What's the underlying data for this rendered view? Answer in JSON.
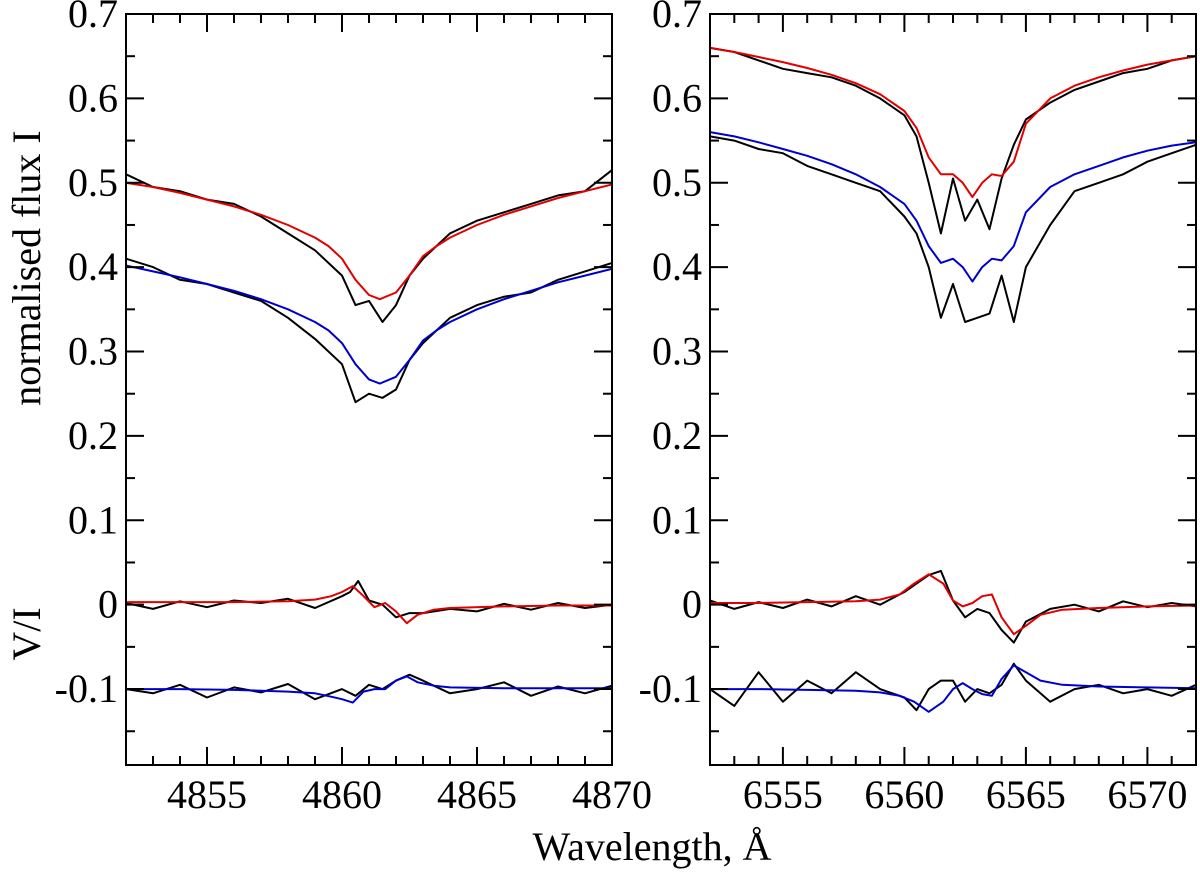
{
  "figure": {
    "ylabel_top": "normalised flux I",
    "ylabel_bottom": "V/I",
    "xlabel": "Wavelength,  Å"
  },
  "colors": {
    "observed": "#000000",
    "model_red": "#e00000",
    "model_blue": "#0000cc"
  },
  "chart_data": [
    {
      "type": "line",
      "panel": "left",
      "xlim": [
        4852,
        4870
      ],
      "ylim": [
        -0.19,
        0.7
      ],
      "x_ticks": [
        4855,
        4860,
        4865,
        4870
      ],
      "x_tick_labels": [
        "4855",
        "4860",
        "4865",
        "4870"
      ],
      "y_ticks": [
        -0.1,
        0,
        0.1,
        0.2,
        0.3,
        0.4,
        0.5,
        0.6,
        0.7
      ],
      "y_tick_labels": [
        "-0.1",
        "0",
        "0.1",
        "0.2",
        "0.3",
        "0.4",
        "0.5",
        "0.6",
        "0.7"
      ],
      "grid": false,
      "series": [
        {
          "role": "observed",
          "color": "#000000",
          "x": [
            4852,
            4853,
            4854,
            4855,
            4856,
            4857,
            4858,
            4859,
            4860,
            4860.5,
            4861,
            4861.5,
            4862,
            4862.5,
            4863,
            4864,
            4865,
            4866,
            4867,
            4868,
            4869,
            4870
          ],
          "y": [
            0.51,
            0.495,
            0.49,
            0.48,
            0.475,
            0.46,
            0.44,
            0.42,
            0.39,
            0.355,
            0.36,
            0.335,
            0.355,
            0.39,
            0.41,
            0.44,
            0.455,
            0.465,
            0.475,
            0.485,
            0.49,
            0.515
          ]
        },
        {
          "role": "model",
          "color": "#e00000",
          "x": [
            4852,
            4853,
            4854,
            4855,
            4856,
            4857,
            4858,
            4859,
            4859.5,
            4860,
            4860.5,
            4861,
            4861.4,
            4862,
            4862.5,
            4863,
            4863.5,
            4864,
            4865,
            4866,
            4867,
            4868,
            4869,
            4870
          ],
          "y": [
            0.5,
            0.495,
            0.488,
            0.48,
            0.472,
            0.462,
            0.45,
            0.435,
            0.425,
            0.41,
            0.385,
            0.367,
            0.362,
            0.37,
            0.39,
            0.413,
            0.425,
            0.435,
            0.45,
            0.462,
            0.472,
            0.482,
            0.49,
            0.498
          ]
        },
        {
          "role": "observed",
          "color": "#000000",
          "x": [
            4852,
            4853,
            4854,
            4855,
            4856,
            4857,
            4858,
            4859,
            4860,
            4860.5,
            4861,
            4861.5,
            4862,
            4862.5,
            4863,
            4864,
            4865,
            4866,
            4867,
            4868,
            4869,
            4870
          ],
          "y": [
            0.41,
            0.4,
            0.385,
            0.38,
            0.37,
            0.36,
            0.34,
            0.315,
            0.285,
            0.24,
            0.25,
            0.245,
            0.255,
            0.29,
            0.31,
            0.34,
            0.355,
            0.365,
            0.37,
            0.385,
            0.395,
            0.405
          ]
        },
        {
          "role": "model",
          "color": "#0000cc",
          "x": [
            4852,
            4853,
            4854,
            4855,
            4856,
            4857,
            4858,
            4859,
            4859.5,
            4860,
            4860.5,
            4861,
            4861.4,
            4862,
            4862.5,
            4863,
            4863.5,
            4864,
            4865,
            4866,
            4867,
            4868,
            4869,
            4870
          ],
          "y": [
            0.402,
            0.395,
            0.388,
            0.38,
            0.372,
            0.362,
            0.35,
            0.335,
            0.325,
            0.31,
            0.285,
            0.267,
            0.262,
            0.27,
            0.29,
            0.313,
            0.325,
            0.335,
            0.35,
            0.362,
            0.372,
            0.382,
            0.39,
            0.398
          ]
        },
        {
          "role": "observed",
          "color": "#000000",
          "x": [
            4852,
            4853,
            4854,
            4855,
            4856,
            4857,
            4858,
            4859,
            4860,
            4860.3,
            4860.6,
            4861,
            4861.5,
            4862,
            4862.5,
            4863,
            4864,
            4865,
            4866,
            4867,
            4868,
            4869,
            4870
          ],
          "y": [
            0.002,
            -0.005,
            0.004,
            -0.003,
            0.005,
            0.002,
            0.007,
            -0.004,
            0.01,
            0.015,
            0.028,
            0.005,
            0.0,
            -0.015,
            -0.01,
            -0.01,
            -0.005,
            -0.008,
            0.001,
            -0.006,
            0.002,
            -0.004,
            0.0
          ]
        },
        {
          "role": "model",
          "color": "#e00000",
          "x": [
            4852,
            4854,
            4856,
            4858,
            4859,
            4859.6,
            4860,
            4860.4,
            4860.8,
            4861.2,
            4861.6,
            4862,
            4862.4,
            4862.8,
            4863.4,
            4864,
            4866,
            4868,
            4870
          ],
          "y": [
            0.003,
            0.003,
            0.003,
            0.004,
            0.006,
            0.01,
            0.015,
            0.022,
            0.01,
            -0.003,
            0.002,
            -0.008,
            -0.022,
            -0.012,
            -0.006,
            -0.004,
            -0.002,
            -0.001,
            -0.001
          ]
        },
        {
          "role": "observed",
          "color": "#000000",
          "x": [
            4852,
            4853,
            4854,
            4855,
            4856,
            4857,
            4858,
            4859,
            4860,
            4860.5,
            4861,
            4861.5,
            4862,
            4862.5,
            4863,
            4864,
            4865,
            4866,
            4867,
            4868,
            4869,
            4870
          ],
          "y": [
            -0.1,
            -0.105,
            -0.095,
            -0.11,
            -0.098,
            -0.104,
            -0.094,
            -0.112,
            -0.1,
            -0.108,
            -0.095,
            -0.1,
            -0.09,
            -0.083,
            -0.09,
            -0.105,
            -0.1,
            -0.092,
            -0.108,
            -0.097,
            -0.105,
            -0.096
          ]
        },
        {
          "role": "model",
          "color": "#0000cc",
          "x": [
            4852,
            4854,
            4856,
            4858,
            4859,
            4859.6,
            4860,
            4860.4,
            4860.8,
            4861.2,
            4861.6,
            4862,
            4862.4,
            4862.8,
            4863.4,
            4864,
            4866,
            4868,
            4870
          ],
          "y": [
            -0.1,
            -0.1,
            -0.101,
            -0.103,
            -0.105,
            -0.109,
            -0.112,
            -0.116,
            -0.103,
            -0.1,
            -0.1,
            -0.09,
            -0.085,
            -0.092,
            -0.096,
            -0.098,
            -0.099,
            -0.099,
            -0.099
          ]
        }
      ]
    },
    {
      "type": "line",
      "panel": "right",
      "xlim": [
        6552,
        6572
      ],
      "ylim": [
        -0.19,
        0.7
      ],
      "x_ticks": [
        6555,
        6560,
        6565,
        6570
      ],
      "x_tick_labels": [
        "6555",
        "6560",
        "6565",
        "6570"
      ],
      "y_ticks": [
        -0.1,
        0,
        0.1,
        0.2,
        0.3,
        0.4,
        0.5,
        0.6,
        0.7
      ],
      "y_tick_labels": [
        "-0.1",
        "0",
        "0.1",
        "0.2",
        "0.3",
        "0.4",
        "0.5",
        "0.6",
        "0.7"
      ],
      "grid": false,
      "series": [
        {
          "role": "observed",
          "color": "#000000",
          "x": [
            6552,
            6553,
            6554,
            6555,
            6556,
            6557,
            6558,
            6559,
            6560,
            6560.5,
            6561,
            6561.5,
            6562,
            6562.5,
            6563,
            6563.5,
            6564,
            6564.5,
            6565,
            6566,
            6567,
            6568,
            6569,
            6570,
            6571,
            6572
          ],
          "y": [
            0.66,
            0.655,
            0.645,
            0.635,
            0.63,
            0.625,
            0.615,
            0.6,
            0.58,
            0.555,
            0.5,
            0.44,
            0.505,
            0.455,
            0.48,
            0.445,
            0.505,
            0.545,
            0.575,
            0.595,
            0.61,
            0.62,
            0.63,
            0.635,
            0.645,
            0.65
          ]
        },
        {
          "role": "model",
          "color": "#e00000",
          "x": [
            6552,
            6553,
            6554,
            6555,
            6556,
            6557,
            6558,
            6559,
            6560,
            6560.5,
            6561,
            6561.5,
            6562,
            6562.4,
            6562.8,
            6563.2,
            6563.6,
            6564,
            6564.5,
            6565,
            6566,
            6567,
            6568,
            6569,
            6570,
            6571,
            6572
          ],
          "y": [
            0.66,
            0.655,
            0.649,
            0.643,
            0.636,
            0.628,
            0.618,
            0.605,
            0.585,
            0.565,
            0.53,
            0.51,
            0.51,
            0.5,
            0.483,
            0.5,
            0.51,
            0.508,
            0.525,
            0.57,
            0.6,
            0.615,
            0.625,
            0.633,
            0.64,
            0.645,
            0.65
          ]
        },
        {
          "role": "observed",
          "color": "#000000",
          "x": [
            6552,
            6553,
            6554,
            6555,
            6556,
            6557,
            6558,
            6559,
            6560,
            6560.5,
            6561,
            6561.5,
            6562,
            6562.5,
            6563,
            6563.5,
            6564,
            6564.5,
            6565,
            6566,
            6567,
            6568,
            6569,
            6570,
            6571,
            6572
          ],
          "y": [
            0.555,
            0.55,
            0.54,
            0.535,
            0.52,
            0.51,
            0.5,
            0.49,
            0.46,
            0.44,
            0.4,
            0.34,
            0.38,
            0.335,
            0.34,
            0.345,
            0.39,
            0.335,
            0.4,
            0.45,
            0.49,
            0.5,
            0.51,
            0.525,
            0.535,
            0.545
          ]
        },
        {
          "role": "model",
          "color": "#0000cc",
          "x": [
            6552,
            6553,
            6554,
            6555,
            6556,
            6557,
            6558,
            6559,
            6560,
            6560.5,
            6561,
            6561.5,
            6562,
            6562.4,
            6562.8,
            6563.2,
            6563.6,
            6564,
            6564.5,
            6565,
            6566,
            6567,
            6568,
            6569,
            6570,
            6571,
            6572
          ],
          "y": [
            0.56,
            0.555,
            0.548,
            0.54,
            0.532,
            0.522,
            0.51,
            0.495,
            0.475,
            0.455,
            0.425,
            0.405,
            0.41,
            0.4,
            0.383,
            0.4,
            0.41,
            0.408,
            0.425,
            0.465,
            0.495,
            0.51,
            0.52,
            0.53,
            0.538,
            0.544,
            0.548
          ]
        },
        {
          "role": "observed",
          "color": "#000000",
          "x": [
            6552,
            6553,
            6554,
            6555,
            6556,
            6557,
            6558,
            6559,
            6560,
            6560.5,
            6561,
            6561.5,
            6562,
            6562.5,
            6563,
            6563.5,
            6564,
            6564.5,
            6565,
            6566,
            6567,
            6568,
            6569,
            6570,
            6571,
            6572
          ],
          "y": [
            0.005,
            -0.005,
            0.003,
            -0.004,
            0.006,
            -0.002,
            0.01,
            0.0,
            0.015,
            0.025,
            0.035,
            0.04,
            0.005,
            -0.015,
            -0.005,
            -0.01,
            -0.03,
            -0.045,
            -0.02,
            -0.005,
            0.0,
            -0.008,
            0.004,
            -0.003,
            0.002,
            -0.002
          ]
        },
        {
          "role": "model",
          "color": "#e00000",
          "x": [
            6552,
            6554,
            6556,
            6558,
            6559,
            6559.8,
            6560.4,
            6561,
            6561.6,
            6562,
            6562.4,
            6562.8,
            6563.2,
            6563.6,
            6564,
            6564.5,
            6565,
            6565.6,
            6566.5,
            6568,
            6570,
            6572
          ],
          "y": [
            0.002,
            0.002,
            0.003,
            0.004,
            0.006,
            0.012,
            0.025,
            0.036,
            0.025,
            0.005,
            -0.002,
            0.002,
            0.01,
            0.012,
            -0.015,
            -0.035,
            -0.025,
            -0.012,
            -0.006,
            -0.004,
            -0.002,
            -0.001
          ]
        },
        {
          "role": "observed",
          "color": "#000000",
          "x": [
            6552,
            6553,
            6554,
            6555,
            6556,
            6557,
            6558,
            6559,
            6560,
            6560.5,
            6561,
            6561.5,
            6562,
            6562.5,
            6563,
            6563.5,
            6564,
            6564.5,
            6565,
            6566,
            6567,
            6568,
            6569,
            6570,
            6571,
            6572
          ],
          "y": [
            -0.1,
            -0.12,
            -0.08,
            -0.115,
            -0.09,
            -0.105,
            -0.08,
            -0.1,
            -0.11,
            -0.125,
            -0.1,
            -0.09,
            -0.09,
            -0.115,
            -0.1,
            -0.105,
            -0.095,
            -0.07,
            -0.09,
            -0.115,
            -0.1,
            -0.095,
            -0.105,
            -0.1,
            -0.108,
            -0.095
          ]
        },
        {
          "role": "model",
          "color": "#0000cc",
          "x": [
            6552,
            6554,
            6556,
            6558,
            6559,
            6559.8,
            6560.4,
            6561,
            6561.6,
            6562,
            6562.4,
            6562.8,
            6563.2,
            6563.6,
            6564,
            6564.5,
            6565,
            6565.6,
            6566.5,
            6568,
            6570,
            6572
          ],
          "y": [
            -0.1,
            -0.1,
            -0.101,
            -0.102,
            -0.104,
            -0.108,
            -0.115,
            -0.127,
            -0.115,
            -0.1,
            -0.093,
            -0.1,
            -0.106,
            -0.108,
            -0.088,
            -0.072,
            -0.08,
            -0.09,
            -0.095,
            -0.097,
            -0.098,
            -0.099
          ]
        }
      ]
    }
  ]
}
